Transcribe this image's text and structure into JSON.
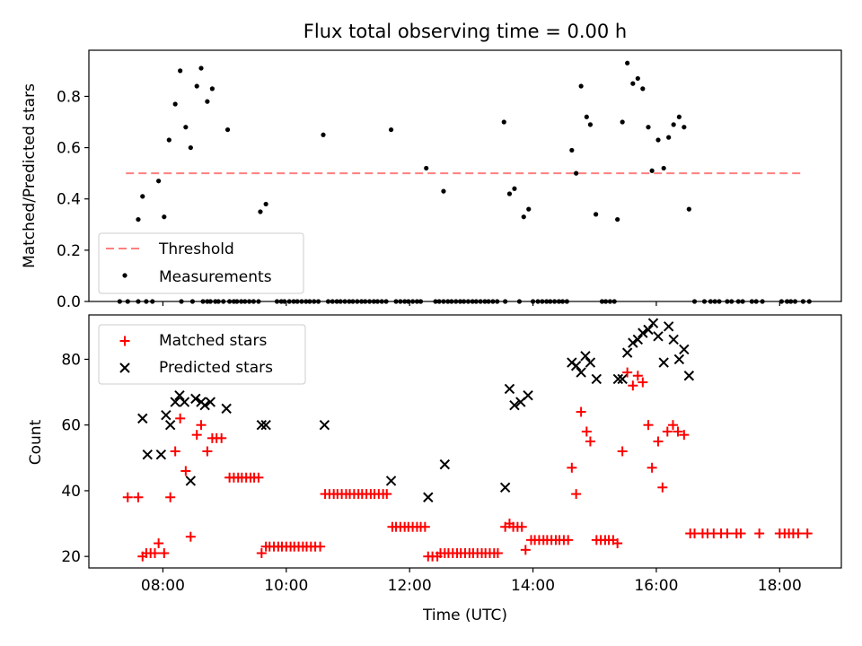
{
  "title": "Flux total observing time = 0.00 h",
  "colors": {
    "threshold": "#ff7f7f",
    "measurements": "#000000",
    "matched": "#ff0000",
    "predicted": "#000000"
  },
  "chart_data": [
    {
      "type": "scatter",
      "ylabel": "Matched/Predicted stars",
      "xlim": [
        6.8,
        19.0
      ],
      "ylim": [
        0,
        0.98
      ],
      "y_ticks": [
        "0.0",
        "0.2",
        "0.4",
        "0.6",
        "0.8"
      ],
      "y_tick_values": [
        0,
        0.2,
        0.4,
        0.6,
        0.8
      ],
      "legend": {
        "placement": "lower-left",
        "threshold_label": "Threshold",
        "measurements_label": "Measurements"
      },
      "threshold": {
        "x": [
          7.4,
          18.4
        ],
        "y": 0.5
      },
      "series": [
        {
          "name": "Measurements",
          "points": [
            [
              7.6,
              0.32
            ],
            [
              7.67,
              0.41
            ],
            [
              7.93,
              0.47
            ],
            [
              8.02,
              0.33
            ],
            [
              8.1,
              0.63
            ],
            [
              8.2,
              0.77
            ],
            [
              8.28,
              0.9
            ],
            [
              8.37,
              0.68
            ],
            [
              8.45,
              0.6
            ],
            [
              8.55,
              0.84
            ],
            [
              8.62,
              0.91
            ],
            [
              8.72,
              0.78
            ],
            [
              8.8,
              0.83
            ],
            [
              9.05,
              0.67
            ],
            [
              9.58,
              0.35
            ],
            [
              9.67,
              0.38
            ],
            [
              10.6,
              0.65
            ],
            [
              11.7,
              0.67
            ],
            [
              12.27,
              0.52
            ],
            [
              12.55,
              0.43
            ],
            [
              13.53,
              0.7
            ],
            [
              13.62,
              0.42
            ],
            [
              13.7,
              0.44
            ],
            [
              13.85,
              0.33
            ],
            [
              13.93,
              0.36
            ],
            [
              14.63,
              0.59
            ],
            [
              14.7,
              0.5
            ],
            [
              14.78,
              0.84
            ],
            [
              14.87,
              0.72
            ],
            [
              14.93,
              0.69
            ],
            [
              15.02,
              0.34
            ],
            [
              15.37,
              0.32
            ],
            [
              15.45,
              0.7
            ],
            [
              15.53,
              0.93
            ],
            [
              15.62,
              0.85
            ],
            [
              15.7,
              0.87
            ],
            [
              15.78,
              0.83
            ],
            [
              15.87,
              0.68
            ],
            [
              15.93,
              0.51
            ],
            [
              16.03,
              0.63
            ],
            [
              16.12,
              0.52
            ],
            [
              16.2,
              0.64
            ],
            [
              16.28,
              0.69
            ],
            [
              16.37,
              0.72
            ],
            [
              16.45,
              0.68
            ],
            [
              16.53,
              0.36
            ]
          ],
          "zero_x": [
            7.3,
            7.43,
            7.6,
            7.73,
            7.83,
            8.3,
            8.48,
            8.65,
            8.72,
            8.77,
            8.85,
            8.9,
            8.98,
            9.08,
            9.15,
            9.2,
            9.27,
            9.33,
            9.4,
            9.47,
            9.55,
            9.85,
            9.92,
            9.97,
            10.05,
            10.12,
            10.18,
            10.25,
            10.32,
            10.38,
            10.45,
            10.52,
            10.68,
            10.75,
            10.82,
            10.88,
            10.95,
            11.02,
            11.08,
            11.15,
            11.22,
            11.28,
            11.35,
            11.42,
            11.48,
            11.55,
            11.62,
            11.78,
            11.85,
            11.92,
            11.98,
            12.05,
            12.12,
            12.18,
            12.42,
            12.48,
            12.55,
            12.62,
            12.68,
            12.75,
            12.82,
            12.88,
            12.95,
            13.02,
            13.08,
            13.15,
            13.22,
            13.28,
            13.35,
            13.42,
            13.55,
            13.78,
            14.0,
            14.08,
            14.15,
            14.22,
            14.28,
            14.35,
            14.42,
            14.48,
            14.55,
            15.12,
            15.18,
            15.25,
            15.32,
            16.62,
            16.78,
            16.88,
            16.95,
            17.02,
            17.15,
            17.22,
            17.33,
            17.4,
            17.55,
            17.62,
            17.72,
            18.03,
            18.12,
            18.18,
            18.25,
            18.38,
            18.48
          ]
        }
      ]
    },
    {
      "type": "scatter",
      "xlabel": "Time (UTC)",
      "ylabel": "Count",
      "xlim": [
        6.8,
        19.0
      ],
      "ylim": [
        16.5,
        93.5
      ],
      "x_ticks": [
        "08:00",
        "10:00",
        "12:00",
        "14:00",
        "16:00",
        "18:00"
      ],
      "x_tick_values": [
        8,
        10,
        12,
        14,
        16,
        18
      ],
      "y_ticks": [
        "20",
        "40",
        "60",
        "80"
      ],
      "y_tick_values": [
        20,
        40,
        60,
        80
      ],
      "legend": {
        "placement": "upper-left"
      },
      "series": [
        {
          "name": "Matched stars",
          "marker": "plus",
          "points": [
            [
              7.43,
              38
            ],
            [
              7.6,
              38
            ],
            [
              7.67,
              20
            ],
            [
              7.73,
              21
            ],
            [
              7.8,
              21
            ],
            [
              7.87,
              21
            ],
            [
              7.93,
              24
            ],
            [
              8.02,
              21
            ],
            [
              8.12,
              38
            ],
            [
              8.2,
              52
            ],
            [
              8.28,
              62
            ],
            [
              8.37,
              46
            ],
            [
              8.45,
              26
            ],
            [
              8.55,
              57
            ],
            [
              8.62,
              60
            ],
            [
              8.72,
              52
            ],
            [
              8.8,
              56
            ],
            [
              8.87,
              56
            ],
            [
              8.95,
              56
            ],
            [
              9.08,
              44
            ],
            [
              9.15,
              44
            ],
            [
              9.22,
              44
            ],
            [
              9.28,
              44
            ],
            [
              9.35,
              44
            ],
            [
              9.42,
              44
            ],
            [
              9.48,
              44
            ],
            [
              9.55,
              44
            ],
            [
              9.6,
              21
            ],
            [
              9.67,
              23
            ],
            [
              9.73,
              23
            ],
            [
              9.8,
              23
            ],
            [
              9.87,
              23
            ],
            [
              9.93,
              23
            ],
            [
              10.0,
              23
            ],
            [
              10.07,
              23
            ],
            [
              10.13,
              23
            ],
            [
              10.2,
              23
            ],
            [
              10.27,
              23
            ],
            [
              10.33,
              23
            ],
            [
              10.4,
              23
            ],
            [
              10.47,
              23
            ],
            [
              10.55,
              23
            ],
            [
              10.63,
              39
            ],
            [
              10.7,
              39
            ],
            [
              10.77,
              39
            ],
            [
              10.83,
              39
            ],
            [
              10.9,
              39
            ],
            [
              10.97,
              39
            ],
            [
              11.03,
              39
            ],
            [
              11.1,
              39
            ],
            [
              11.17,
              39
            ],
            [
              11.23,
              39
            ],
            [
              11.3,
              39
            ],
            [
              11.37,
              39
            ],
            [
              11.43,
              39
            ],
            [
              11.5,
              39
            ],
            [
              11.57,
              39
            ],
            [
              11.63,
              39
            ],
            [
              11.72,
              29
            ],
            [
              11.78,
              29
            ],
            [
              11.85,
              29
            ],
            [
              11.92,
              29
            ],
            [
              11.98,
              29
            ],
            [
              12.05,
              29
            ],
            [
              12.12,
              29
            ],
            [
              12.18,
              29
            ],
            [
              12.25,
              29
            ],
            [
              12.3,
              20
            ],
            [
              12.37,
              20
            ],
            [
              12.45,
              20
            ],
            [
              12.5,
              21
            ],
            [
              12.57,
              21
            ],
            [
              12.63,
              21
            ],
            [
              12.7,
              21
            ],
            [
              12.77,
              21
            ],
            [
              12.83,
              21
            ],
            [
              12.9,
              21
            ],
            [
              12.97,
              21
            ],
            [
              13.03,
              21
            ],
            [
              13.1,
              21
            ],
            [
              13.17,
              21
            ],
            [
              13.23,
              21
            ],
            [
              13.3,
              21
            ],
            [
              13.37,
              21
            ],
            [
              13.43,
              21
            ],
            [
              13.55,
              29
            ],
            [
              13.62,
              30
            ],
            [
              13.68,
              29
            ],
            [
              13.75,
              29
            ],
            [
              13.82,
              29
            ],
            [
              13.88,
              22
            ],
            [
              13.97,
              25
            ],
            [
              14.03,
              25
            ],
            [
              14.1,
              25
            ],
            [
              14.17,
              25
            ],
            [
              14.23,
              25
            ],
            [
              14.3,
              25
            ],
            [
              14.37,
              25
            ],
            [
              14.43,
              25
            ],
            [
              14.5,
              25
            ],
            [
              14.57,
              25
            ],
            [
              14.63,
              47
            ],
            [
              14.7,
              39
            ],
            [
              14.78,
              64
            ],
            [
              14.87,
              58
            ],
            [
              14.93,
              55
            ],
            [
              15.03,
              25
            ],
            [
              15.1,
              25
            ],
            [
              15.17,
              25
            ],
            [
              15.23,
              25
            ],
            [
              15.3,
              25
            ],
            [
              15.37,
              24
            ],
            [
              15.45,
              52
            ],
            [
              15.53,
              76
            ],
            [
              15.62,
              72
            ],
            [
              15.7,
              75
            ],
            [
              15.78,
              73
            ],
            [
              15.87,
              60
            ],
            [
              15.93,
              47
            ],
            [
              16.03,
              55
            ],
            [
              16.1,
              41
            ],
            [
              16.18,
              58
            ],
            [
              16.27,
              60
            ],
            [
              16.35,
              58
            ],
            [
              16.45,
              57
            ],
            [
              16.55,
              27
            ],
            [
              16.62,
              27
            ],
            [
              16.75,
              27
            ],
            [
              16.83,
              27
            ],
            [
              16.93,
              27
            ],
            [
              17.05,
              27
            ],
            [
              17.15,
              27
            ],
            [
              17.3,
              27
            ],
            [
              17.37,
              27
            ],
            [
              17.67,
              27
            ],
            [
              18.0,
              27
            ],
            [
              18.08,
              27
            ],
            [
              18.15,
              27
            ],
            [
              18.22,
              27
            ],
            [
              18.3,
              27
            ],
            [
              18.45,
              27
            ]
          ]
        },
        {
          "name": "Predicted stars",
          "marker": "x",
          "points": [
            [
              7.67,
              62
            ],
            [
              7.75,
              51
            ],
            [
              7.97,
              51
            ],
            [
              8.05,
              63
            ],
            [
              8.12,
              60
            ],
            [
              8.2,
              67
            ],
            [
              8.27,
              69
            ],
            [
              8.35,
              67
            ],
            [
              8.45,
              43
            ],
            [
              8.53,
              68
            ],
            [
              8.62,
              67
            ],
            [
              8.68,
              66
            ],
            [
              8.77,
              67
            ],
            [
              9.03,
              65
            ],
            [
              9.6,
              60
            ],
            [
              9.67,
              60
            ],
            [
              10.62,
              60
            ],
            [
              11.7,
              43
            ],
            [
              12.3,
              38
            ],
            [
              12.57,
              48
            ],
            [
              13.55,
              41
            ],
            [
              13.62,
              71
            ],
            [
              13.7,
              66
            ],
            [
              13.8,
              67
            ],
            [
              13.92,
              69
            ],
            [
              14.63,
              79
            ],
            [
              14.7,
              78
            ],
            [
              14.78,
              76
            ],
            [
              14.85,
              81
            ],
            [
              14.93,
              79
            ],
            [
              15.03,
              74
            ],
            [
              15.38,
              74
            ],
            [
              15.45,
              74
            ],
            [
              15.53,
              82
            ],
            [
              15.62,
              85
            ],
            [
              15.7,
              86
            ],
            [
              15.78,
              88
            ],
            [
              15.87,
              89
            ],
            [
              15.95,
              91
            ],
            [
              16.03,
              87
            ],
            [
              16.12,
              79
            ],
            [
              16.2,
              90
            ],
            [
              16.28,
              86
            ],
            [
              16.37,
              80
            ],
            [
              16.45,
              83
            ],
            [
              16.53,
              75
            ]
          ]
        }
      ]
    }
  ]
}
